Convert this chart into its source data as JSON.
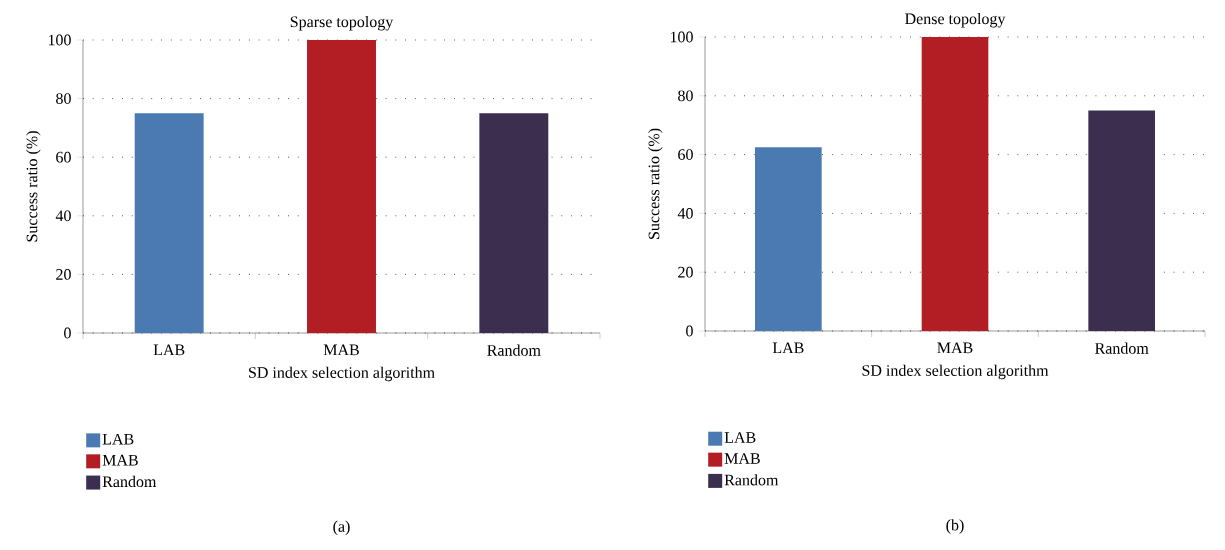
{
  "chart_data": [
    {
      "type": "bar",
      "title": "Sparse topology",
      "xlabel": "SD index selection algorithm",
      "ylabel": "Success ratio (%)",
      "categories": [
        "LAB",
        "MAB",
        "Random"
      ],
      "series": [
        {
          "name": "LAB",
          "color": "#4b7ab3",
          "values": [
            75,
            null,
            null
          ]
        },
        {
          "name": "MAB",
          "color": "#b21e24",
          "values": [
            null,
            100,
            null
          ]
        },
        {
          "name": "Random",
          "color": "#3c2e4e",
          "values": [
            null,
            null,
            75
          ]
        }
      ],
      "ylim": [
        0,
        100
      ],
      "yticks": [
        0,
        20,
        40,
        60,
        80,
        100
      ],
      "grid": "y",
      "legend": "bottom",
      "annotations": [
        "(a)"
      ]
    },
    {
      "type": "bar",
      "title": "Dense topology",
      "xlabel": "SD index selection algorithm",
      "ylabel": "Success ratio (%)",
      "categories": [
        "LAB",
        "MAB",
        "Random"
      ],
      "series": [
        {
          "name": "LAB",
          "color": "#4b7ab3",
          "values": [
            62.5,
            null,
            null
          ]
        },
        {
          "name": "MAB",
          "color": "#b21e24",
          "values": [
            null,
            100,
            null
          ]
        },
        {
          "name": "Random",
          "color": "#3c2e4e",
          "values": [
            null,
            null,
            75
          ]
        }
      ],
      "ylim": [
        0,
        100
      ],
      "yticks": [
        0,
        20,
        40,
        60,
        80,
        100
      ],
      "grid": "y",
      "legend": "bottom",
      "annotations": [
        "(b)"
      ]
    }
  ]
}
